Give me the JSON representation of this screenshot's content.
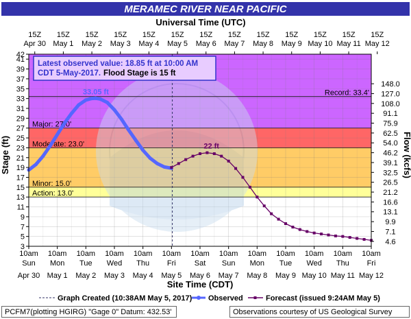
{
  "header": {
    "title": "MERAMEC RIVER NEAR PACIFIC",
    "top_axis_title": "Universal Time (UTC)"
  },
  "info_box": {
    "line1": "Latest observed value: 18.85 ft at 10:00 AM",
    "line2_a": "CDT 5-May-2017.",
    "line2_b": "Flood Stage is 15 ft"
  },
  "legend": {
    "graph_created": "Graph Created (10:38AM May 5, 2017)",
    "observed": "Observed",
    "forecast": "Forecast (issued 9:24AM May 5)"
  },
  "footer": {
    "left": "PCFM7(plotting HGIRG) \"Gage 0\" Datum: 432.53'",
    "right": "Observations courtesy of US Geological Survey"
  },
  "colors": {
    "title_bg": "#3333aa",
    "record_zone": "#cc66ff",
    "major_zone": "#ff6666",
    "moderate_zone": "#ffcc66",
    "minor_zone": "#ffff99",
    "action_zone": "#ffffff",
    "observed": "#5566ff",
    "forecast": "#660066",
    "info_text": "#3333cc"
  },
  "chart_data": {
    "type": "line",
    "xlabel": "Site Time (CDT)",
    "ylabel": "Stage (ft)",
    "y2label": "Flow (kcfs)",
    "ylim": [
      3,
      42
    ],
    "xlim": [
      "Apr 30 10am",
      "May 12 10am"
    ],
    "grid": true,
    "yticks": [
      3,
      5,
      7,
      9,
      11,
      13,
      15,
      17,
      19,
      21,
      23,
      25,
      27,
      29,
      31,
      33,
      35,
      37,
      39,
      41,
      42
    ],
    "flow_ticks": [
      {
        "stage": 4,
        "label": "4.6"
      },
      {
        "stage": 6,
        "label": "7.1"
      },
      {
        "stage": 8,
        "label": "9.9"
      },
      {
        "stage": 10,
        "label": "13.1"
      },
      {
        "stage": 12,
        "label": "16.6"
      },
      {
        "stage": 14,
        "label": "21.2"
      },
      {
        "stage": 16,
        "label": "26.5"
      },
      {
        "stage": 18,
        "label": "32.5"
      },
      {
        "stage": 20,
        "label": "39.1"
      },
      {
        "stage": 22,
        "label": "46.2"
      },
      {
        "stage": 24,
        "label": "54.0"
      },
      {
        "stage": 26,
        "label": "62.5"
      },
      {
        "stage": 28,
        "label": "75.9"
      },
      {
        "stage": 30,
        "label": "91.1"
      },
      {
        "stage": 32,
        "label": "108.0"
      },
      {
        "stage": 34,
        "label": "127.0"
      },
      {
        "stage": 36,
        "label": "148.0"
      }
    ],
    "top_ticks": {
      "time": [
        "15Z",
        "15Z",
        "15Z",
        "15Z",
        "15Z",
        "15Z",
        "15Z",
        "15Z",
        "15Z",
        "15Z",
        "15Z",
        "15Z",
        "15Z"
      ],
      "date": [
        "Apr 30",
        "May 1",
        "May 2",
        "May 3",
        "May 4",
        "May 5",
        "May 6",
        "May 7",
        "May 8",
        "May 9",
        "May 10",
        "May 11",
        "May 12"
      ]
    },
    "bottom_ticks": {
      "time": [
        "10am",
        "10am",
        "10am",
        "10am",
        "10am",
        "10am",
        "10am",
        "10am",
        "10am",
        "10am",
        "10am",
        "10am",
        "10am"
      ],
      "day": [
        "Sun",
        "Mon",
        "Tue",
        "Wed",
        "Thu",
        "Fri",
        "Sat",
        "Sun",
        "Mon",
        "Tue",
        "Wed",
        "Thu",
        "Fri"
      ],
      "date": [
        "Apr 30",
        "May 1",
        "May 2",
        "May 3",
        "May 4",
        "May 5",
        "May 6",
        "May 7",
        "May 8",
        "May 9",
        "May 10",
        "May 11",
        "May 12"
      ]
    },
    "flood_categories": [
      {
        "name": "Record",
        "label": "Record: 33.4'",
        "stage": 33.4
      },
      {
        "name": "Major",
        "label": "Major: 27.0'",
        "stage": 27.0
      },
      {
        "name": "Moderate",
        "label": "Moderate: 23.0'",
        "stage": 23.0
      },
      {
        "name": "Minor",
        "label": "Minor: 15.0'",
        "stage": 15.0
      },
      {
        "name": "Action",
        "label": "Action: 13.0'",
        "stage": 13.0
      }
    ],
    "annotations": [
      {
        "text": "33.05 ft",
        "x": 2.35,
        "y": 33.05,
        "series": "Observed"
      },
      {
        "text": "22 ft",
        "x": 6.4,
        "y": 22.0,
        "series": "Forecast"
      }
    ],
    "graph_created_x": 5.03,
    "series": [
      {
        "name": "Observed",
        "x": [
          0,
          0.25,
          0.5,
          0.75,
          1.0,
          1.25,
          1.5,
          1.75,
          2.0,
          2.2,
          2.35,
          2.5,
          2.75,
          3.0,
          3.25,
          3.5,
          3.75,
          4.0,
          4.25,
          4.5,
          4.75,
          5.0
        ],
        "y": [
          18.5,
          19.6,
          21.3,
          23.4,
          25.7,
          28.0,
          30.0,
          31.7,
          32.7,
          33.0,
          33.05,
          32.9,
          32.2,
          30.7,
          28.8,
          26.6,
          24.5,
          22.5,
          20.9,
          19.8,
          19.1,
          18.85
        ]
      },
      {
        "name": "Forecast",
        "x": [
          5.0,
          5.25,
          5.5,
          5.75,
          6.0,
          6.25,
          6.5,
          6.75,
          7.0,
          7.25,
          7.5,
          7.75,
          8.0,
          8.25,
          8.5,
          8.75,
          9.0,
          9.25,
          9.5,
          9.75,
          10.0,
          10.25,
          10.5,
          10.75,
          11.0,
          11.25,
          11.5,
          11.75,
          12.0
        ],
        "y": [
          19.0,
          19.8,
          20.6,
          21.3,
          21.8,
          22.0,
          21.8,
          21.3,
          20.3,
          18.8,
          17.0,
          15.0,
          13.0,
          11.2,
          9.6,
          8.5,
          7.6,
          6.9,
          6.4,
          6.0,
          5.7,
          5.5,
          5.3,
          5.1,
          5.0,
          4.8,
          4.6,
          4.4,
          4.2
        ]
      }
    ]
  }
}
